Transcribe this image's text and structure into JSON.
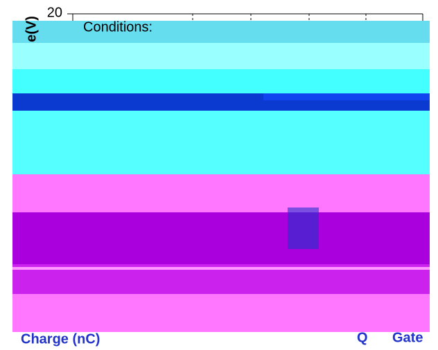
{
  "y_tick": "20",
  "y_axis_label": "e(V)",
  "annotation": "Conditions:",
  "x_label_left": "Charge (nC)",
  "x_label_right_symbol": "Q",
  "x_label_right": "Gate"
}
